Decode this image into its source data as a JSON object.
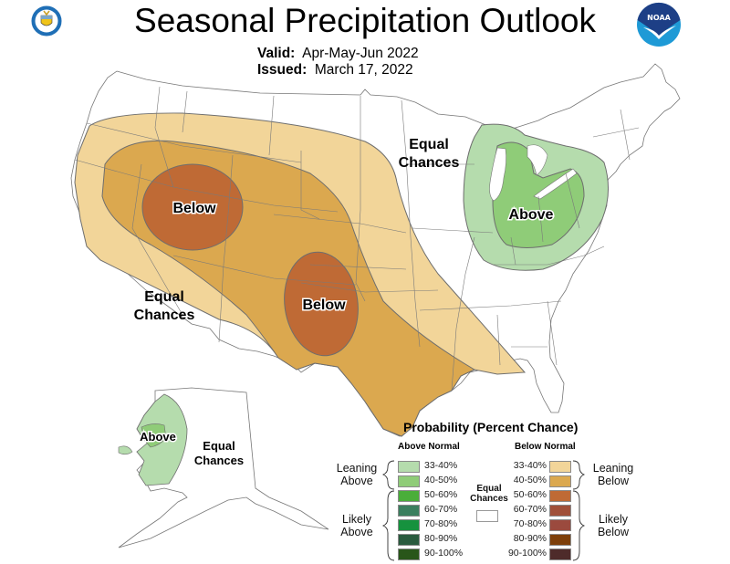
{
  "header": {
    "title": "Seasonal Precipitation Outlook",
    "valid_label": "Valid:",
    "valid_value": "Apr-May-Jun 2022",
    "issued_label": "Issued:",
    "issued_value": "March 17, 2022",
    "left_logo": "department-of-commerce-seal",
    "right_logo": "noaa-logo",
    "noaa_text": "NOAA"
  },
  "map": {
    "labels": {
      "west_below": "Below",
      "south_below": "Below",
      "midwest_above": "Above",
      "north_equal_line1": "Equal",
      "north_equal_line2": "Chances",
      "sw_equal_line1": "Equal",
      "sw_equal_line2": "Chances",
      "alaska_above": "Above",
      "alaska_equal_line1": "Equal",
      "alaska_equal_line2": "Chances"
    },
    "colors": {
      "leaning_below": "#f2d599",
      "below_40_50": "#dba84f",
      "below_50_60": "#bf6a35",
      "leaning_above": "#b5dcad",
      "above_40_50": "#8fcc78",
      "state_line": "#777777",
      "contour_line": "#6e6e6e"
    }
  },
  "legend": {
    "title": "Probability (Percent Chance)",
    "above_header": "Above Normal",
    "below_header": "Below Normal",
    "equal_line1": "Equal",
    "equal_line2": "Chances",
    "leaning_above_1": "Leaning",
    "leaning_above_2": "Above",
    "likely_above_1": "Likely",
    "likely_above_2": "Above",
    "leaning_below_1": "Leaning",
    "leaning_below_2": "Below",
    "likely_below_1": "Likely",
    "likely_below_2": "Below",
    "above": [
      {
        "range": "33-40%",
        "color": "#b5dcad"
      },
      {
        "range": "40-50%",
        "color": "#8fcc78"
      },
      {
        "range": "50-60%",
        "color": "#4aae3a"
      },
      {
        "range": "60-70%",
        "color": "#3b7e5e"
      },
      {
        "range": "70-80%",
        "color": "#16923e"
      },
      {
        "range": "80-90%",
        "color": "#2a5a3e"
      },
      {
        "range": "90-100%",
        "color": "#29561a"
      }
    ],
    "below": [
      {
        "range": "33-40%",
        "color": "#f2d599"
      },
      {
        "range": "40-50%",
        "color": "#dba84f"
      },
      {
        "range": "50-60%",
        "color": "#bf6a35"
      },
      {
        "range": "60-70%",
        "color": "#a0503a"
      },
      {
        "range": "70-80%",
        "color": "#9b4a3e"
      },
      {
        "range": "80-90%",
        "color": "#7d3f0a"
      },
      {
        "range": "90-100%",
        "color": "#4e2b2a"
      }
    ]
  }
}
